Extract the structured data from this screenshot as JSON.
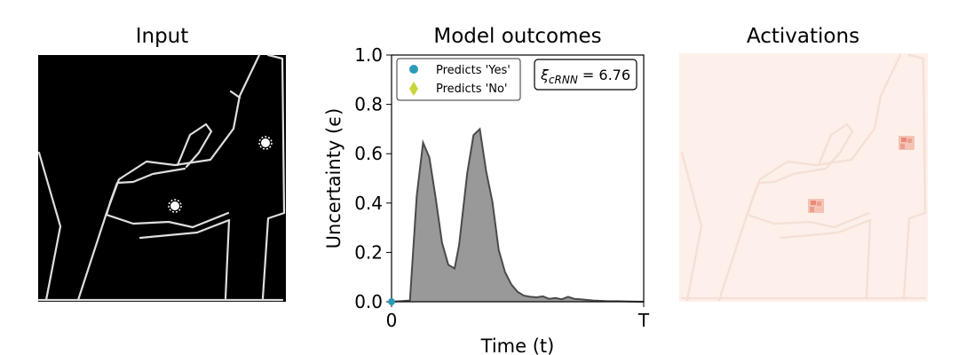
{
  "panels": {
    "input_title": "Input",
    "outcomes_title": "Model outcomes",
    "activations_title": "Activations"
  },
  "chart_data": {
    "type": "area",
    "title": "Model outcomes",
    "xlabel": "Time (t)",
    "ylabel": "Uncertainty (ϵ)",
    "xlim": [
      0,
      1
    ],
    "ylim": [
      0,
      1.0
    ],
    "xtick_labels": [
      "0",
      "T"
    ],
    "yticks": [
      0.0,
      0.2,
      0.4,
      0.6,
      0.8,
      1.0
    ],
    "ytick_labels": [
      "0.0",
      "0.2",
      "0.4",
      "0.6",
      "0.8",
      "1.0"
    ],
    "series": [
      {
        "x": [
          0.0,
          0.073,
          0.1,
          0.125,
          0.15,
          0.175,
          0.2,
          0.225,
          0.25,
          0.268,
          0.3,
          0.325,
          0.35,
          0.375,
          0.4,
          0.425,
          0.45,
          0.475,
          0.5,
          0.525,
          0.55,
          0.575,
          0.6,
          0.625,
          0.65,
          0.675,
          0.7,
          0.725,
          0.75,
          0.8,
          0.85,
          0.9,
          0.95,
          1.0
        ],
        "values": [
          0.0,
          0.005,
          0.43,
          0.645,
          0.585,
          0.42,
          0.24,
          0.15,
          0.135,
          0.23,
          0.52,
          0.675,
          0.7,
          0.53,
          0.405,
          0.21,
          0.12,
          0.07,
          0.04,
          0.025,
          0.02,
          0.018,
          0.022,
          0.012,
          0.015,
          0.01,
          0.02,
          0.012,
          0.01,
          0.005,
          0.003,
          0.002,
          0.001,
          0.0
        ]
      }
    ],
    "markers": [
      {
        "name": "Predicts 'Yes'",
        "x": 0.0,
        "y": 0.0,
        "color": "#2c9bb9",
        "shape": "circle"
      }
    ],
    "legend": {
      "placement": "top-left",
      "entries": [
        {
          "label": "Predicts 'Yes'",
          "color": "#2c9bb9",
          "shape": "circle"
        },
        {
          "label": "Predicts 'No'",
          "color": "#c8d63a",
          "shape": "diamond"
        }
      ]
    },
    "annotation": {
      "placement": "top-right",
      "symbol": "ξ",
      "subscript": "cRNN",
      "text": " = 6.76"
    },
    "fill_color": "#999999",
    "line_color": "#4a4a4a",
    "grid": false
  },
  "input_image": {
    "background": "#000000",
    "stroke": "#dedede"
  },
  "activations_image": {
    "background": "#fdf0ea",
    "spot_color": "#e88a7a"
  }
}
